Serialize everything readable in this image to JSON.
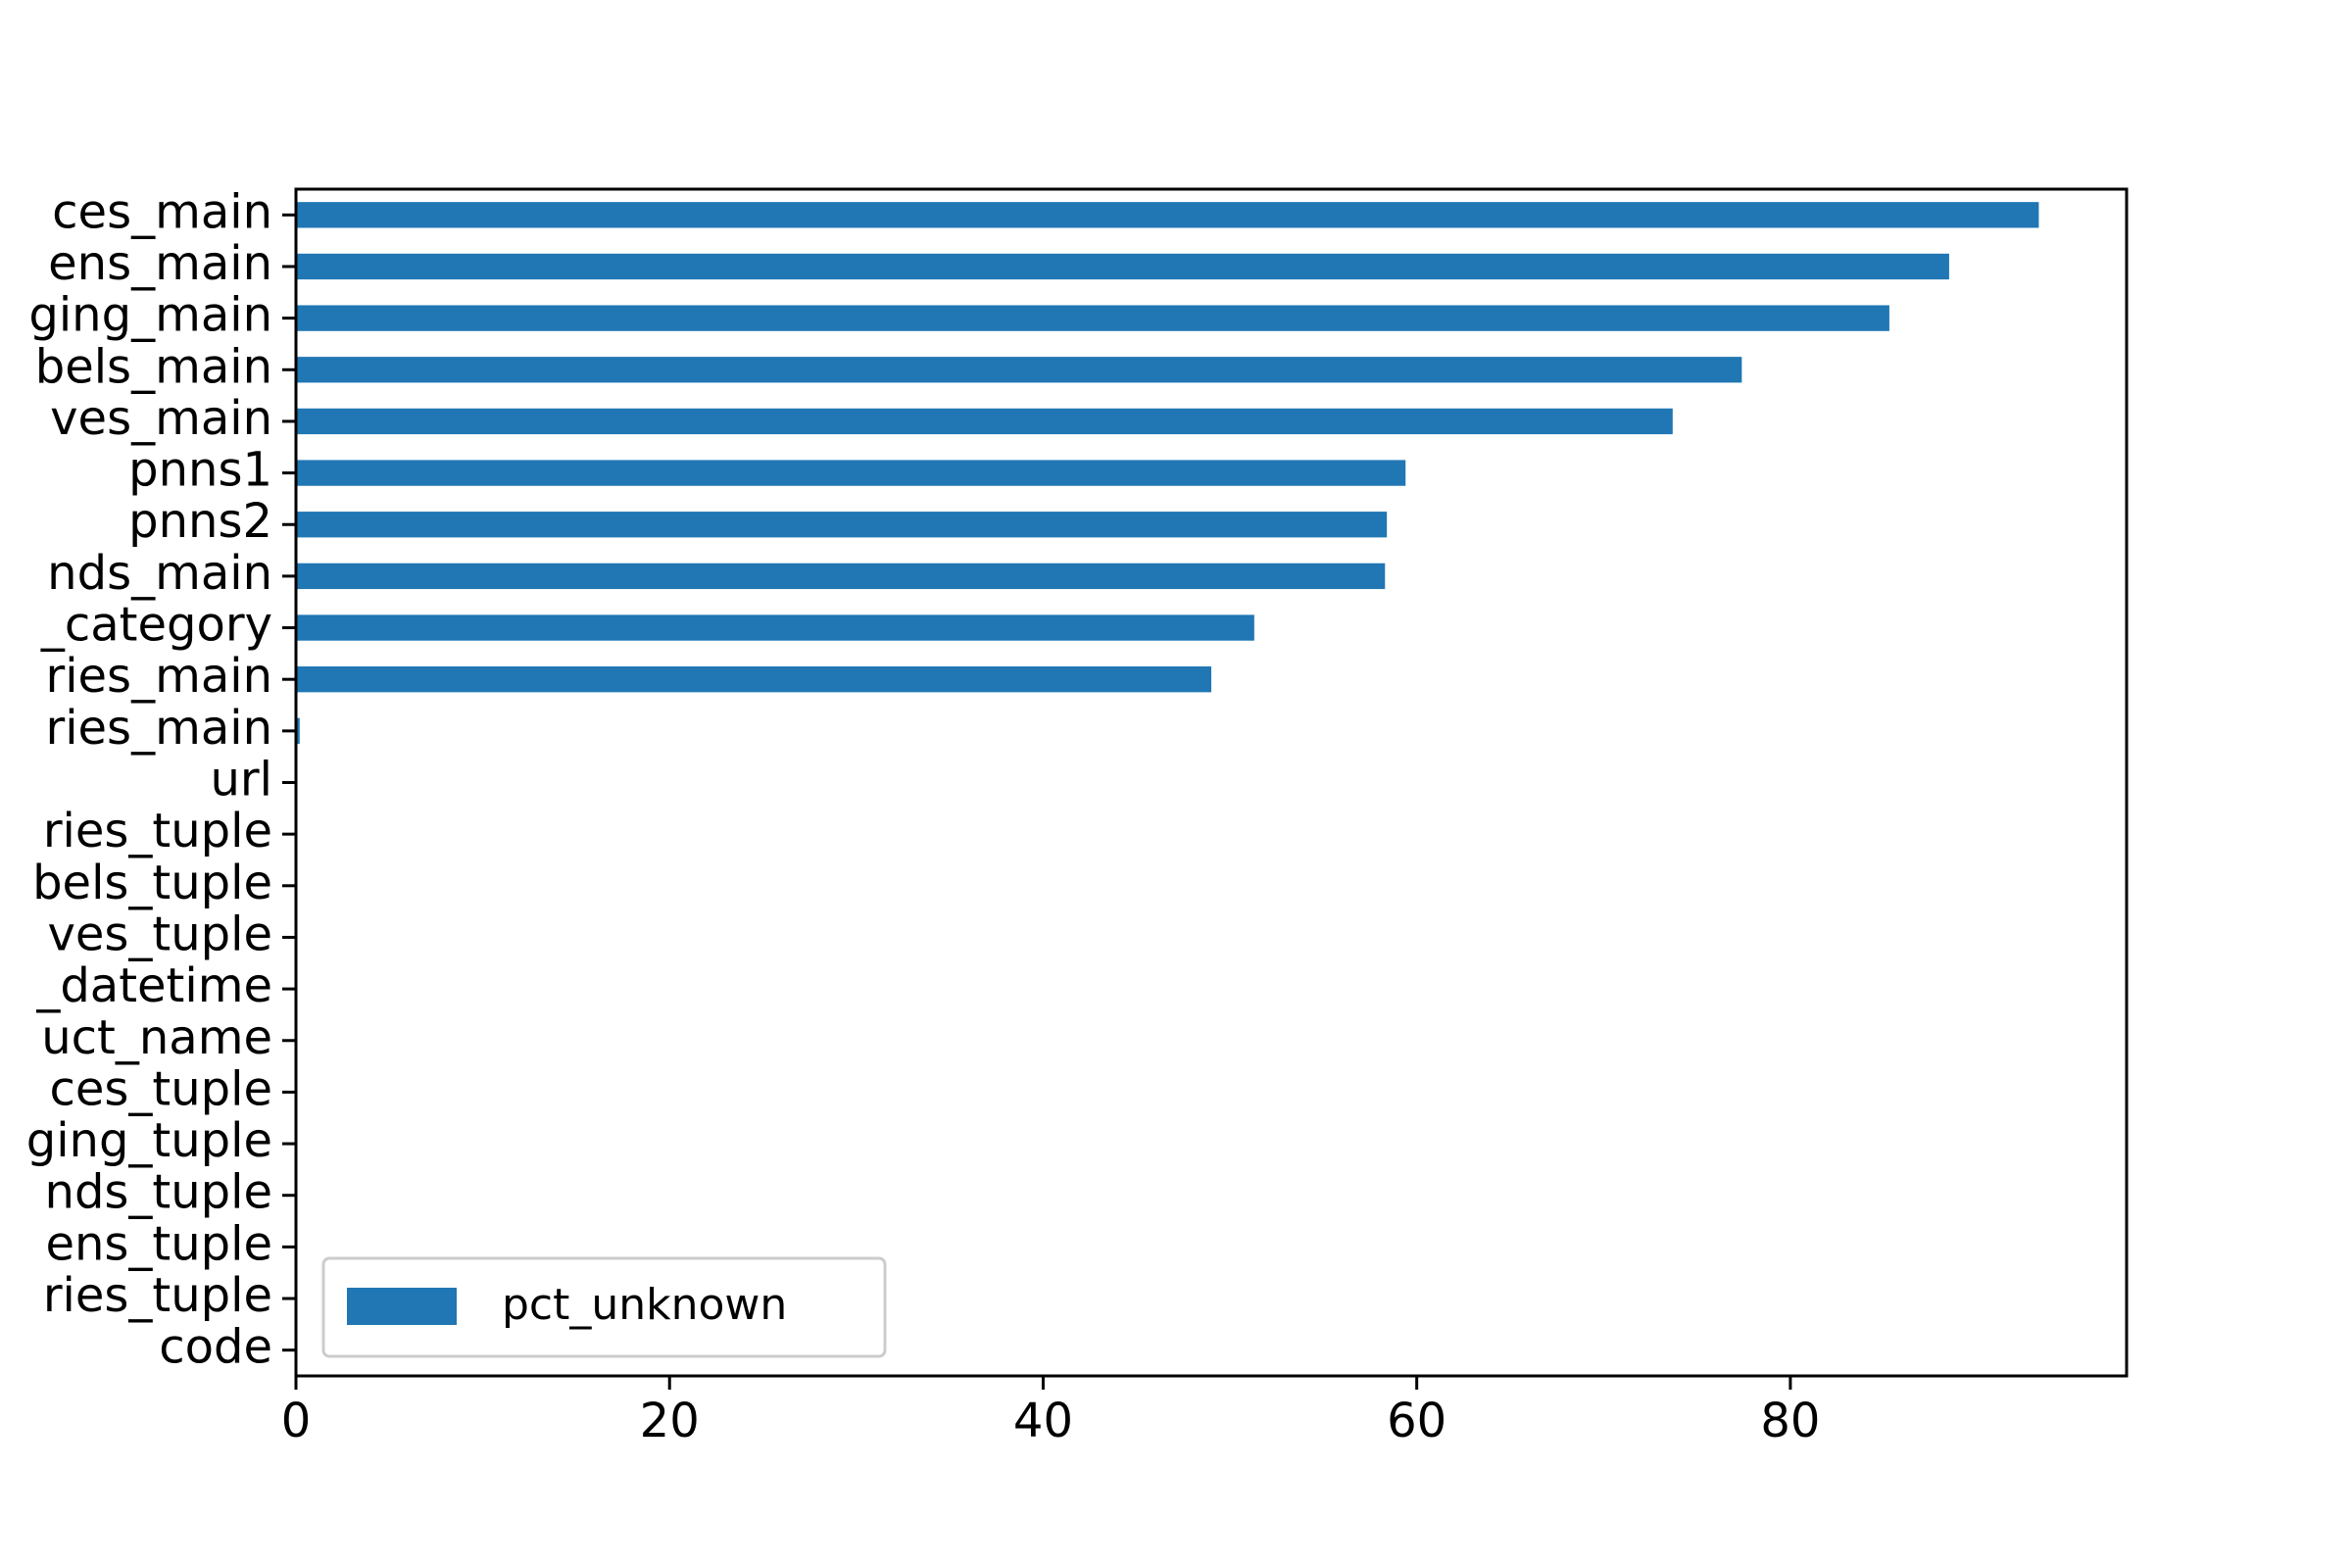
{
  "chart_data": {
    "type": "bar",
    "orientation": "horizontal",
    "categories": [
      "ces_main",
      "ens_main",
      "ging_main",
      "bels_main",
      "ves_main",
      "pnns1",
      "pnns2",
      "nds_main",
      "_category",
      "ries_main",
      "ries_main",
      "url",
      "ries_tuple",
      "bels_tuple",
      "ves_tuple",
      "_datetime",
      "uct_name",
      "ces_tuple",
      "ging_tuple",
      "nds_tuple",
      "ens_tuple",
      "ries_tuple",
      "code"
    ],
    "series": [
      {
        "name": "pct_unknown",
        "values": [
          93.3,
          88.5,
          85.3,
          77.4,
          73.7,
          59.4,
          58.4,
          58.3,
          51.3,
          49.0,
          0.2,
          0,
          0,
          0,
          0,
          0,
          0,
          0,
          0,
          0,
          0,
          0,
          0
        ]
      }
    ],
    "title": "",
    "xlabel": "",
    "ylabel": "",
    "xlim": [
      0,
      98
    ],
    "xticks": [
      "0",
      "20",
      "40",
      "60",
      "80"
    ],
    "grid": false,
    "legend": {
      "position": "lower-left",
      "entries": [
        "pct_unknown"
      ]
    },
    "colors": {
      "bar": "#2077b4",
      "axes": "#000000",
      "legend_border": "#cccccc"
    }
  }
}
